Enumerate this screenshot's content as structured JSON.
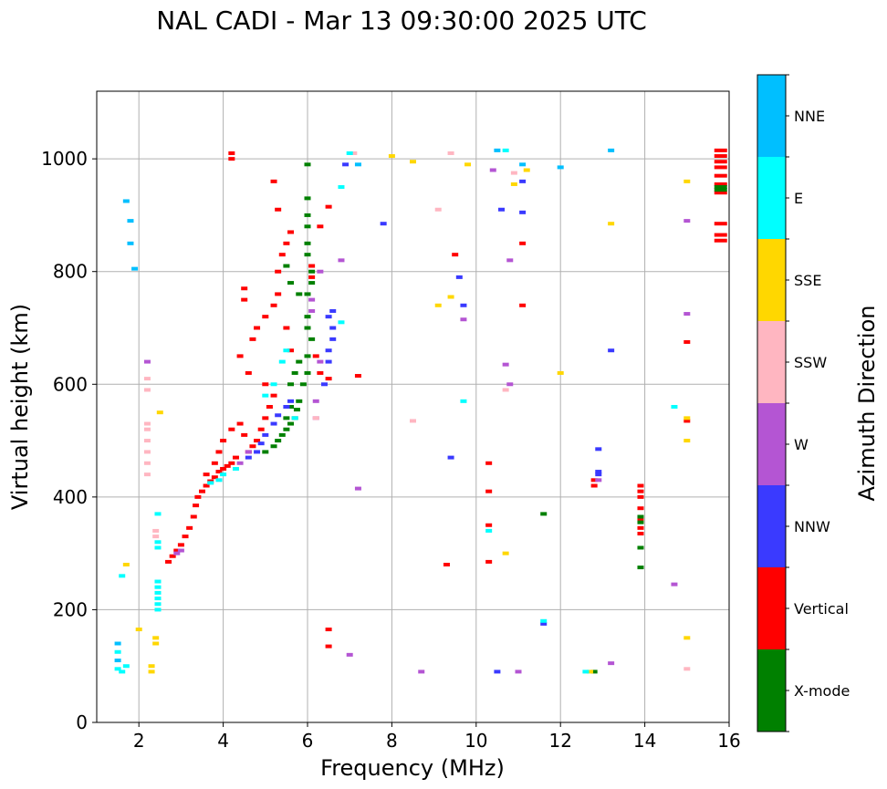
{
  "chart_data": {
    "type": "scatter",
    "title": "NAL CADI - Mar 13 09:30:00 2025 UTC",
    "xlabel": "Frequency (MHz)",
    "ylabel": "Virtual height (km)",
    "xlim": [
      1,
      16
    ],
    "ylim": [
      0,
      1120
    ],
    "xticks": [
      2,
      4,
      6,
      8,
      10,
      12,
      14,
      16
    ],
    "yticks": [
      0,
      200,
      400,
      600,
      800,
      1000
    ],
    "grid": true,
    "colorbar": {
      "label": "Azimuth Direction",
      "categories": [
        {
          "name": "X-mode",
          "color": "#008000"
        },
        {
          "name": "Vertical",
          "color": "#ff0000"
        },
        {
          "name": "NNW",
          "color": "#3a3aff"
        },
        {
          "name": "W",
          "color": "#b455d3"
        },
        {
          "name": "SSW",
          "color": "#ffb6c1"
        },
        {
          "name": "SSE",
          "color": "#ffd700"
        },
        {
          "name": "E",
          "color": "#00ffff"
        },
        {
          "name": "NNE",
          "color": "#00bfff"
        }
      ]
    },
    "series": [
      {
        "name": "Vertical",
        "points": [
          [
            2.7,
            285
          ],
          [
            2.8,
            295
          ],
          [
            2.9,
            305
          ],
          [
            3.0,
            315
          ],
          [
            3.1,
            330
          ],
          [
            3.2,
            345
          ],
          [
            3.3,
            365
          ],
          [
            3.35,
            385
          ],
          [
            3.4,
            400
          ],
          [
            3.5,
            410
          ],
          [
            3.6,
            420
          ],
          [
            3.7,
            428
          ],
          [
            3.8,
            435
          ],
          [
            3.9,
            445
          ],
          [
            4.0,
            450
          ],
          [
            4.1,
            455
          ],
          [
            4.2,
            460
          ],
          [
            4.3,
            470
          ],
          [
            3.6,
            440
          ],
          [
            3.8,
            460
          ],
          [
            3.9,
            480
          ],
          [
            4.0,
            500
          ],
          [
            4.2,
            520
          ],
          [
            4.4,
            530
          ],
          [
            4.5,
            510
          ],
          [
            4.6,
            480
          ],
          [
            4.7,
            490
          ],
          [
            4.8,
            500
          ],
          [
            4.9,
            520
          ],
          [
            5.0,
            540
          ],
          [
            5.1,
            560
          ],
          [
            5.2,
            580
          ],
          [
            5.0,
            600
          ],
          [
            4.6,
            620
          ],
          [
            4.4,
            650
          ],
          [
            4.7,
            680
          ],
          [
            4.8,
            700
          ],
          [
            5.0,
            720
          ],
          [
            5.2,
            740
          ],
          [
            5.3,
            760
          ],
          [
            4.5,
            770
          ],
          [
            4.5,
            750
          ],
          [
            5.3,
            800
          ],
          [
            5.4,
            830
          ],
          [
            5.5,
            850
          ],
          [
            5.6,
            870
          ],
          [
            5.3,
            910
          ],
          [
            5.2,
            960
          ],
          [
            5.5,
            700
          ],
          [
            5.6,
            660
          ],
          [
            4.2,
            1000
          ],
          [
            4.2,
            1010
          ],
          [
            6.5,
            915
          ],
          [
            6.3,
            880
          ],
          [
            6.1,
            810
          ],
          [
            6.1,
            790
          ],
          [
            6.2,
            650
          ],
          [
            6.3,
            620
          ],
          [
            6.5,
            610
          ],
          [
            7.2,
            615
          ],
          [
            6.5,
            165
          ],
          [
            6.5,
            135
          ],
          [
            9.5,
            830
          ],
          [
            9.3,
            280
          ],
          [
            10.3,
            460
          ],
          [
            10.3,
            410
          ],
          [
            10.3,
            350
          ],
          [
            10.3,
            285
          ],
          [
            11.1,
            850
          ],
          [
            11.1,
            740
          ],
          [
            12.8,
            430
          ],
          [
            12.8,
            420
          ],
          [
            13.9,
            420
          ],
          [
            13.9,
            410
          ],
          [
            13.9,
            400
          ],
          [
            13.9,
            380
          ],
          [
            13.9,
            360
          ],
          [
            13.9,
            345
          ],
          [
            13.9,
            335
          ],
          [
            15.0,
            675
          ],
          [
            15.0,
            535
          ],
          [
            15.8,
            1015
          ],
          [
            15.8,
            1005
          ],
          [
            15.8,
            995
          ],
          [
            15.8,
            985
          ],
          [
            15.8,
            970
          ],
          [
            15.8,
            955
          ],
          [
            15.8,
            940
          ],
          [
            15.8,
            885
          ],
          [
            15.8,
            865
          ],
          [
            15.8,
            855
          ]
        ]
      },
      {
        "name": "X-mode",
        "points": [
          [
            5.0,
            480
          ],
          [
            5.2,
            490
          ],
          [
            5.3,
            500
          ],
          [
            5.4,
            510
          ],
          [
            5.5,
            520
          ],
          [
            5.6,
            530
          ],
          [
            5.7,
            540
          ],
          [
            5.75,
            555
          ],
          [
            5.8,
            570
          ],
          [
            5.6,
            560
          ],
          [
            5.5,
            540
          ],
          [
            5.9,
            600
          ],
          [
            6.0,
            620
          ],
          [
            6.0,
            650
          ],
          [
            6.1,
            680
          ],
          [
            5.8,
            640
          ],
          [
            5.7,
            620
          ],
          [
            5.6,
            600
          ],
          [
            6.0,
            700
          ],
          [
            6.0,
            720
          ],
          [
            6.0,
            760
          ],
          [
            6.1,
            780
          ],
          [
            6.1,
            800
          ],
          [
            6.0,
            830
          ],
          [
            6.0,
            850
          ],
          [
            6.0,
            880
          ],
          [
            6.0,
            900
          ],
          [
            6.0,
            930
          ],
          [
            6.0,
            990
          ],
          [
            5.5,
            810
          ],
          [
            5.6,
            780
          ],
          [
            5.8,
            760
          ],
          [
            13.9,
            365
          ],
          [
            13.9,
            355
          ],
          [
            13.9,
            275
          ],
          [
            13.9,
            310
          ],
          [
            15.8,
            950
          ],
          [
            15.8,
            945
          ],
          [
            12.8,
            90
          ],
          [
            11.6,
            370
          ]
        ]
      },
      {
        "name": "NNW",
        "points": [
          [
            4.6,
            470
          ],
          [
            4.8,
            480
          ],
          [
            4.9,
            495
          ],
          [
            5.0,
            510
          ],
          [
            5.2,
            530
          ],
          [
            5.3,
            545
          ],
          [
            5.5,
            560
          ],
          [
            5.6,
            570
          ],
          [
            6.5,
            720
          ],
          [
            6.6,
            700
          ],
          [
            6.6,
            680
          ],
          [
            6.5,
            660
          ],
          [
            6.5,
            640
          ],
          [
            6.4,
            600
          ],
          [
            6.6,
            730
          ],
          [
            12.9,
            445
          ],
          [
            12.9,
            440
          ],
          [
            12.9,
            485
          ],
          [
            9.4,
            470
          ],
          [
            9.6,
            790
          ],
          [
            9.7,
            740
          ],
          [
            10.6,
            910
          ],
          [
            11.1,
            905
          ],
          [
            11.1,
            960
          ],
          [
            13.2,
            660
          ],
          [
            10.5,
            90
          ],
          [
            11.6,
            175
          ],
          [
            7.8,
            885
          ],
          [
            6.9,
            990
          ]
        ]
      },
      {
        "name": "W",
        "points": [
          [
            3.0,
            305
          ],
          [
            2.9,
            300
          ],
          [
            4.4,
            460
          ],
          [
            4.6,
            480
          ],
          [
            6.2,
            540
          ],
          [
            6.2,
            570
          ],
          [
            6.3,
            640
          ],
          [
            6.1,
            730
          ],
          [
            6.1,
            750
          ],
          [
            2.2,
            640
          ],
          [
            6.3,
            800
          ],
          [
            6.8,
            820
          ],
          [
            7.2,
            415
          ],
          [
            7.0,
            120
          ],
          [
            8.7,
            90
          ],
          [
            10.4,
            980
          ],
          [
            10.8,
            600
          ],
          [
            10.8,
            820
          ],
          [
            12.9,
            430
          ],
          [
            13.2,
            105
          ],
          [
            14.7,
            245
          ],
          [
            15.0,
            890
          ],
          [
            15.0,
            725
          ],
          [
            9.7,
            715
          ],
          [
            10.7,
            635
          ],
          [
            11.0,
            90
          ]
        ]
      },
      {
        "name": "SSW",
        "points": [
          [
            2.2,
            440
          ],
          [
            2.2,
            460
          ],
          [
            2.2,
            480
          ],
          [
            2.2,
            500
          ],
          [
            2.2,
            520
          ],
          [
            2.2,
            530
          ],
          [
            2.2,
            590
          ],
          [
            2.2,
            610
          ],
          [
            2.4,
            330
          ],
          [
            2.4,
            340
          ],
          [
            9.1,
            910
          ],
          [
            9.4,
            1010
          ],
          [
            8.5,
            535
          ],
          [
            10.7,
            590
          ],
          [
            10.9,
            975
          ],
          [
            15.0,
            95
          ],
          [
            7.1,
            1010
          ],
          [
            6.2,
            540
          ]
        ]
      },
      {
        "name": "SSE",
        "points": [
          [
            2.4,
            140
          ],
          [
            2.4,
            150
          ],
          [
            2.3,
            90
          ],
          [
            2.3,
            100
          ],
          [
            2.0,
            165
          ],
          [
            1.7,
            280
          ],
          [
            2.5,
            550
          ],
          [
            8.5,
            995
          ],
          [
            9.1,
            740
          ],
          [
            9.4,
            755
          ],
          [
            9.8,
            990
          ],
          [
            10.7,
            300
          ],
          [
            10.9,
            955
          ],
          [
            11.2,
            980
          ],
          [
            12.0,
            620
          ],
          [
            12.7,
            90
          ],
          [
            13.2,
            885
          ],
          [
            15.0,
            960
          ],
          [
            15.0,
            540
          ],
          [
            15.0,
            500
          ],
          [
            15.0,
            150
          ],
          [
            8.0,
            1005
          ]
        ]
      },
      {
        "name": "E",
        "points": [
          [
            2.45,
            200
          ],
          [
            2.45,
            210
          ],
          [
            2.45,
            220
          ],
          [
            2.45,
            230
          ],
          [
            2.45,
            240
          ],
          [
            2.45,
            250
          ],
          [
            2.45,
            310
          ],
          [
            2.45,
            320
          ],
          [
            2.45,
            370
          ],
          [
            1.5,
            95
          ],
          [
            1.6,
            90
          ],
          [
            1.7,
            100
          ],
          [
            1.5,
            125
          ],
          [
            1.6,
            260
          ],
          [
            3.7,
            425
          ],
          [
            3.9,
            430
          ],
          [
            4.0,
            440
          ],
          [
            4.3,
            450
          ],
          [
            5.0,
            580
          ],
          [
            5.2,
            600
          ],
          [
            5.4,
            640
          ],
          [
            5.5,
            660
          ],
          [
            5.7,
            540
          ],
          [
            6.8,
            710
          ],
          [
            7.0,
            1010
          ],
          [
            6.8,
            950
          ],
          [
            10.3,
            340
          ],
          [
            10.7,
            1015
          ],
          [
            11.6,
            180
          ],
          [
            12.6,
            90
          ],
          [
            14.7,
            560
          ],
          [
            9.7,
            570
          ]
        ]
      },
      {
        "name": "NNE",
        "points": [
          [
            1.7,
            925
          ],
          [
            1.8,
            890
          ],
          [
            1.8,
            850
          ],
          [
            1.9,
            805
          ],
          [
            1.5,
            140
          ],
          [
            1.5,
            110
          ],
          [
            11.1,
            990
          ],
          [
            12.0,
            985
          ],
          [
            13.2,
            1015
          ],
          [
            10.5,
            1015
          ],
          [
            7.2,
            990
          ]
        ]
      }
    ]
  }
}
